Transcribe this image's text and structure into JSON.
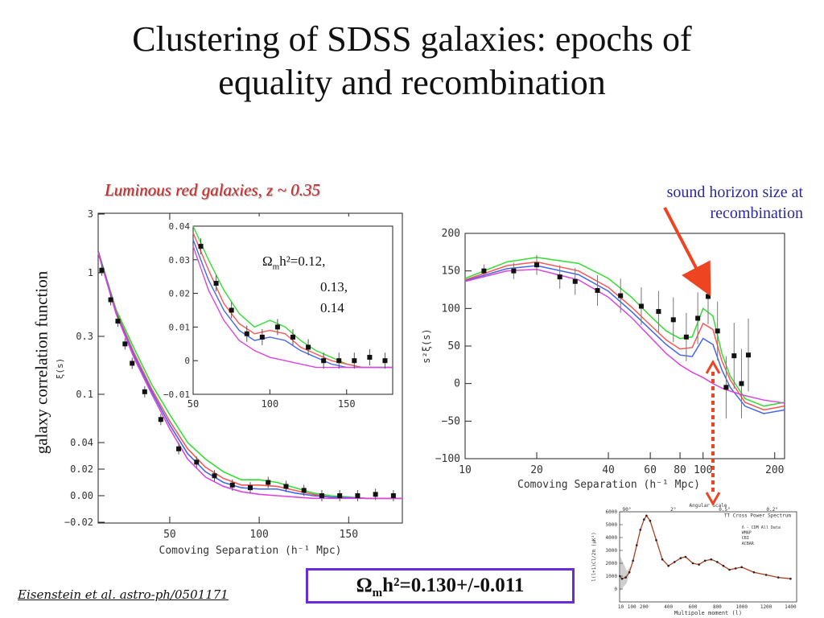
{
  "slide": {
    "title_line1": "Clustering of SDSS galaxies: epochs of",
    "title_line2": "equality and recombination",
    "subtitle": "Luminous red galaxies,  z ~ 0.35",
    "annotation_line1": "sound horizon size at",
    "annotation_line2": "recombination",
    "left_ylabel": "galaxy correlation function",
    "result_prefix": "Ω",
    "result_sub": "m",
    "result_rest": "h²=0.130+/-0.011",
    "citation": "Eisenstein et al. astro-ph/0501171",
    "inset_label_prefix": "Ω",
    "inset_label_sub": "m",
    "inset_label_line1": "h²=0.12,",
    "inset_label_line2": "0.13,",
    "inset_label_line3": "0.14"
  },
  "colors": {
    "green": "#33dd33",
    "red": "#ff5555",
    "blue": "#4466ee",
    "magenta": "#dd44dd",
    "arrow": "#ee4422"
  },
  "chart_data": [
    {
      "id": "main-xi",
      "type": "scatter",
      "xlabel": "Comoving Separation (h⁻¹ Mpc)",
      "ylabel": "ξ(s)",
      "xlim": [
        10,
        180
      ],
      "xticks": [
        50,
        100,
        150
      ],
      "yticks": [
        3,
        1,
        0.3,
        0.1,
        0.04,
        0.02,
        0.0,
        -0.02
      ],
      "yticklabels": [
        "3",
        "1",
        "0.3",
        "0.1",
        "0.04",
        "0.02",
        "0.00",
        "−0.02"
      ],
      "points_x": [
        12,
        17,
        21,
        25,
        29,
        36,
        45,
        55,
        65,
        75,
        85,
        95,
        105,
        115,
        125,
        135,
        145,
        155,
        165,
        175
      ],
      "points_y": [
        1.05,
        0.6,
        0.4,
        0.26,
        0.18,
        0.105,
        0.062,
        0.034,
        0.024,
        0.015,
        0.008,
        0.006,
        0.01,
        0.007,
        0.004,
        0.0,
        0.0,
        0.0,
        0.001,
        0.0
      ],
      "series": [
        {
          "x": [
            10,
            20,
            30,
            40,
            50,
            60,
            70,
            80,
            90,
            100,
            110,
            120,
            130,
            140,
            160,
            180
          ],
          "y": [
            1.5,
            0.5,
            0.24,
            0.12,
            0.068,
            0.04,
            0.026,
            0.018,
            0.012,
            0.012,
            0.01,
            0.006,
            0.002,
            0.0,
            -0.002,
            -0.002
          ]
        },
        {
          "x": [
            10,
            20,
            30,
            40,
            50,
            60,
            70,
            80,
            90,
            100,
            110,
            120,
            130,
            140,
            160,
            180
          ],
          "y": [
            1.5,
            0.48,
            0.22,
            0.11,
            0.06,
            0.034,
            0.021,
            0.013,
            0.008,
            0.008,
            0.007,
            0.004,
            0.001,
            -0.001,
            -0.002,
            -0.002
          ]
        },
        {
          "x": [
            10,
            20,
            30,
            40,
            50,
            60,
            70,
            80,
            90,
            100,
            110,
            120,
            130,
            140,
            160,
            180
          ],
          "y": [
            1.5,
            0.47,
            0.21,
            0.105,
            0.056,
            0.03,
            0.018,
            0.01,
            0.006,
            0.005,
            0.005,
            0.002,
            0.0,
            -0.001,
            -0.002,
            -0.002
          ]
        },
        {
          "x": [
            10,
            20,
            30,
            40,
            50,
            60,
            70,
            80,
            90,
            100,
            110,
            120,
            130,
            140,
            160,
            180
          ],
          "y": [
            1.45,
            0.46,
            0.2,
            0.1,
            0.052,
            0.026,
            0.014,
            0.007,
            0.003,
            0.001,
            0.0,
            -0.001,
            -0.002,
            -0.002,
            -0.002,
            -0.002
          ]
        }
      ]
    },
    {
      "id": "inset-xi",
      "type": "scatter",
      "xlim": [
        50,
        180
      ],
      "ylim": [
        -0.01,
        0.04
      ],
      "xticks": [
        50,
        100,
        150
      ],
      "yticks": [
        0.04,
        0.03,
        0.02,
        0.01,
        0,
        -0.01
      ],
      "yticklabels": [
        "0.04",
        "0.03",
        "0.02",
        "0.01",
        "0",
        "−0.01"
      ],
      "points_x": [
        55,
        65,
        75,
        85,
        95,
        105,
        115,
        125,
        135,
        145,
        155,
        165,
        175
      ],
      "points_y": [
        0.034,
        0.023,
        0.015,
        0.008,
        0.007,
        0.01,
        0.007,
        0.004,
        0.0,
        0.0,
        0.0,
        0.001,
        0.0
      ],
      "series": [
        {
          "x": [
            50,
            60,
            70,
            80,
            90,
            100,
            110,
            120,
            130,
            140,
            150,
            160,
            180
          ],
          "y": [
            0.04,
            0.03,
            0.021,
            0.014,
            0.01,
            0.012,
            0.01,
            0.006,
            0.003,
            0.001,
            -0.001,
            -0.002,
            -0.002
          ]
        },
        {
          "x": [
            50,
            60,
            70,
            80,
            90,
            100,
            110,
            120,
            130,
            140,
            150,
            160,
            180
          ],
          "y": [
            0.038,
            0.027,
            0.017,
            0.011,
            0.008,
            0.009,
            0.008,
            0.004,
            0.002,
            0.0,
            -0.001,
            -0.002,
            -0.002
          ]
        },
        {
          "x": [
            50,
            60,
            70,
            80,
            90,
            100,
            110,
            120,
            130,
            140,
            150,
            160,
            180
          ],
          "y": [
            0.036,
            0.024,
            0.015,
            0.009,
            0.006,
            0.007,
            0.006,
            0.003,
            0.001,
            -0.001,
            -0.002,
            -0.002,
            -0.002
          ]
        },
        {
          "x": [
            50,
            60,
            70,
            80,
            90,
            100,
            110,
            120,
            130,
            140,
            150,
            160,
            180
          ],
          "y": [
            0.034,
            0.021,
            0.012,
            0.006,
            0.003,
            0.001,
            0.0,
            -0.001,
            -0.002,
            -0.002,
            -0.002,
            -0.002,
            -0.002
          ]
        }
      ]
    },
    {
      "id": "s2xi",
      "type": "scatter",
      "xlabel": "Comoving Separation (h⁻¹ Mpc)",
      "ylabel": "s²ξ(s)",
      "xscale": "log",
      "xlim": [
        10,
        220
      ],
      "ylim": [
        -100,
        200
      ],
      "xticks": [
        10,
        20,
        40,
        60,
        80,
        100,
        200
      ],
      "yticks": [
        200,
        150,
        100,
        50,
        0,
        -50,
        -100
      ],
      "yticklabels": [
        "200",
        "150",
        "100",
        "50",
        "0",
        "−50",
        "−100"
      ],
      "points_x": [
        12,
        16,
        20,
        25,
        29,
        36,
        45,
        55,
        65,
        75,
        85,
        95,
        105,
        115,
        125,
        135,
        145,
        155
      ],
      "points_y": [
        150,
        150,
        158,
        142,
        136,
        124,
        117,
        103,
        96,
        85,
        62,
        87,
        116,
        70,
        -5,
        37,
        0,
        38
      ],
      "series": [
        {
          "x": [
            10,
            15,
            20,
            30,
            40,
            50,
            60,
            70,
            80,
            90,
            100,
            110,
            120,
            130,
            150,
            180,
            220
          ],
          "y": [
            140,
            162,
            168,
            160,
            140,
            115,
            90,
            70,
            60,
            62,
            100,
            90,
            40,
            10,
            -20,
            -30,
            -25
          ]
        },
        {
          "x": [
            10,
            15,
            20,
            30,
            40,
            50,
            60,
            70,
            80,
            90,
            100,
            110,
            120,
            130,
            150,
            180,
            220
          ],
          "y": [
            138,
            157,
            162,
            150,
            128,
            102,
            78,
            58,
            46,
            48,
            80,
            72,
            30,
            5,
            -25,
            -35,
            -30
          ]
        },
        {
          "x": [
            10,
            15,
            20,
            30,
            40,
            50,
            60,
            70,
            80,
            90,
            100,
            110,
            120,
            130,
            150,
            180,
            220
          ],
          "y": [
            137,
            153,
            157,
            145,
            123,
            96,
            72,
            52,
            38,
            36,
            60,
            52,
            18,
            -5,
            -30,
            -40,
            -35
          ]
        },
        {
          "x": [
            10,
            15,
            20,
            30,
            40,
            50,
            60,
            70,
            80,
            90,
            100,
            110,
            120,
            130,
            150,
            180,
            220
          ],
          "y": [
            136,
            150,
            152,
            138,
            115,
            88,
            62,
            40,
            25,
            15,
            8,
            0,
            -6,
            -10,
            -16,
            -22,
            -26
          ]
        }
      ]
    },
    {
      "id": "cmb-tt",
      "type": "scatter",
      "title": "TT Cross Power Spectrum",
      "top_axis_title": "Angular Scale",
      "top_ticks": [
        "90°",
        "2°",
        "0.5°",
        "0.2°"
      ],
      "xlabel": "Multipole moment (l)",
      "ylabel": "l(l+1)Cl/2π (μK²)",
      "xlim": [
        0,
        1450
      ],
      "ylim": [
        -1000,
        6000
      ],
      "xticks": [
        10,
        100,
        200,
        400,
        600,
        800,
        1000,
        1200,
        1400
      ],
      "yticks": [
        6000,
        5000,
        4000,
        3000,
        2000,
        1000,
        0
      ],
      "legend": [
        "Λ - CDM All Data",
        "WMAP",
        "CBI",
        "ACBAR"
      ],
      "curve_x": [
        2,
        20,
        50,
        80,
        110,
        140,
        170,
        200,
        220,
        250,
        300,
        350,
        400,
        450,
        500,
        540,
        600,
        650,
        700,
        750,
        800,
        850,
        900,
        950,
        1000,
        1100,
        1200,
        1300,
        1400
      ],
      "curve_y": [
        1000,
        800,
        900,
        1300,
        2200,
        3400,
        4600,
        5400,
        5700,
        5300,
        3800,
        2300,
        1800,
        2100,
        2400,
        2500,
        2000,
        1900,
        2200,
        2300,
        2100,
        1800,
        1500,
        1600,
        1700,
        1300,
        1100,
        900,
        800
      ]
    }
  ]
}
